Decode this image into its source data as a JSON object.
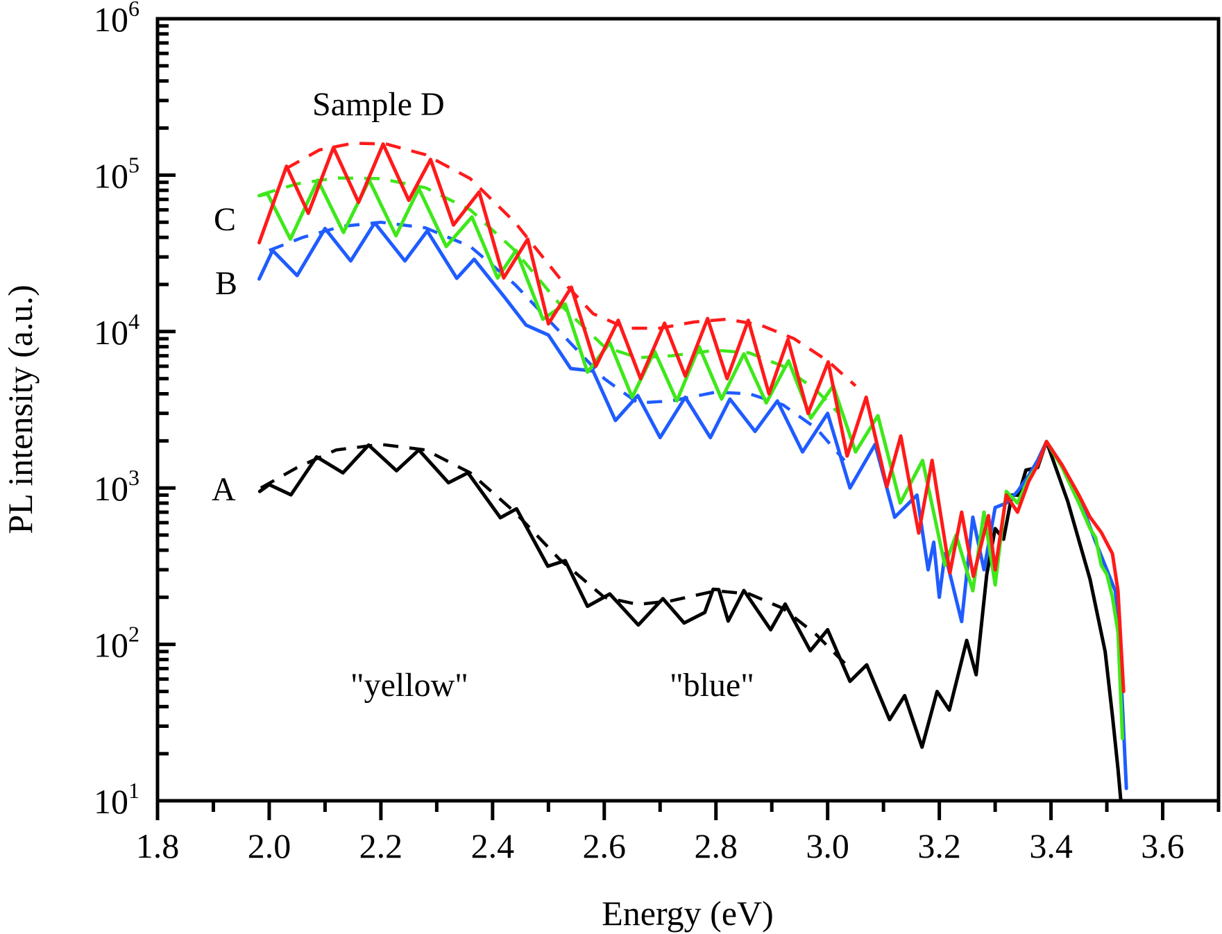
{
  "chart_data": {
    "type": "line",
    "title": "",
    "xlabel": "Energy (eV)",
    "ylabel": "PL intensity (a.u.)",
    "xscale": "linear",
    "yscale": "log",
    "xlim": [
      1.8,
      3.7
    ],
    "ylim": [
      10,
      1000000
    ],
    "xticks": [
      1.8,
      2.0,
      2.2,
      2.4,
      2.6,
      2.8,
      3.0,
      3.2,
      3.4,
      3.6
    ],
    "xtick_labels": [
      "1.8",
      "2.0",
      "2.2",
      "2.4",
      "2.6",
      "2.8",
      "3.0",
      "3.2",
      "3.4",
      "3.6"
    ],
    "yticks": [
      10,
      100,
      1000,
      10000,
      100000,
      1000000
    ],
    "ytick_labels": [
      {
        "base": "10",
        "exp": "1"
      },
      {
        "base": "10",
        "exp": "2"
      },
      {
        "base": "10",
        "exp": "3"
      },
      {
        "base": "10",
        "exp": "4"
      },
      {
        "base": "10",
        "exp": "5"
      },
      {
        "base": "10",
        "exp": "6"
      }
    ],
    "grid": false,
    "legend": "none",
    "annotations": [
      {
        "name": "sample-title",
        "text": "Sample D",
        "x": 2.05,
        "y": 200000
      },
      {
        "name": "label-c",
        "text": "C",
        "x": 1.89,
        "y": 60000
      },
      {
        "name": "label-b",
        "text": "B",
        "x": 1.89,
        "y": 25000
      },
      {
        "name": "label-a",
        "text": "A",
        "x": 1.89,
        "y": 1000
      },
      {
        "name": "label-yellow",
        "text": "\"yellow\"",
        "x": 2.1,
        "y": 50
      },
      {
        "name": "label-blue",
        "text": "\"blue\"",
        "x": 2.67,
        "y": 50
      }
    ],
    "series": [
      {
        "name": "A",
        "style": "solid",
        "color": "#000000",
        "x": [
          1.983,
          2.0,
          2.039,
          2.085,
          2.132,
          2.178,
          2.228,
          2.268,
          2.321,
          2.356,
          2.414,
          2.443,
          2.499,
          2.53,
          2.57,
          2.61,
          2.661,
          2.705,
          2.743,
          2.78,
          2.795,
          2.805,
          2.822,
          2.85,
          2.898,
          2.924,
          2.969,
          3.0,
          3.04,
          3.07,
          3.111,
          3.138,
          3.169,
          3.196,
          3.218,
          3.249,
          3.266,
          3.285,
          3.3,
          3.315,
          3.33,
          3.342,
          3.355,
          3.376,
          3.392,
          3.43,
          3.47,
          3.497,
          3.51,
          3.52,
          3.525
        ],
        "y": [
          950,
          1050,
          904,
          1580,
          1250,
          1880,
          1290,
          1750,
          1080,
          1250,
          645,
          736,
          316,
          343,
          175,
          210,
          133,
          196,
          137,
          160,
          225,
          224,
          141,
          221,
          124,
          181,
          91,
          124,
          58,
          74,
          33,
          47,
          22,
          50,
          38,
          106,
          64,
          280,
          550,
          470,
          900,
          900,
          1300,
          1350,
          1980,
          820,
          260,
          90,
          35,
          16,
          10
        ]
      },
      {
        "name": "B",
        "style": "solid",
        "color": "#1f5cff",
        "x": [
          1.982,
          2.006,
          2.05,
          2.1,
          2.146,
          2.189,
          2.243,
          2.283,
          2.336,
          2.367,
          2.422,
          2.46,
          2.5,
          2.54,
          2.58,
          2.62,
          2.66,
          2.7,
          2.745,
          2.79,
          2.825,
          2.87,
          2.91,
          2.955,
          3.0,
          3.04,
          3.085,
          3.12,
          3.16,
          3.18,
          3.19,
          3.2,
          3.21,
          3.24,
          3.26,
          3.28,
          3.3,
          3.32,
          3.34,
          3.36,
          3.376,
          3.392,
          3.43,
          3.46,
          3.48,
          3.5,
          3.515,
          3.52,
          3.528,
          3.535
        ],
        "y": [
          21700,
          33000,
          22800,
          45600,
          28300,
          49500,
          28300,
          44000,
          21900,
          29000,
          16500,
          11000,
          9500,
          5800,
          5600,
          2700,
          3900,
          2100,
          3800,
          2100,
          3700,
          2300,
          3600,
          1700,
          3000,
          1000,
          1900,
          650,
          900,
          300,
          450,
          200,
          380,
          140,
          650,
          300,
          750,
          800,
          950,
          1200,
          1500,
          1980,
          1200,
          700,
          450,
          300,
          220,
          160,
          40,
          12
        ]
      },
      {
        "name": "C-green",
        "style": "solid",
        "color": "#3ee81a",
        "x": [
          1.982,
          1.997,
          2.038,
          2.087,
          2.133,
          2.179,
          2.227,
          2.268,
          2.317,
          2.363,
          2.409,
          2.442,
          2.49,
          2.53,
          2.57,
          2.61,
          2.65,
          2.69,
          2.73,
          2.77,
          2.81,
          2.85,
          2.89,
          2.93,
          2.97,
          3.01,
          3.05,
          3.09,
          3.13,
          3.17,
          3.21,
          3.23,
          3.26,
          3.28,
          3.3,
          3.32,
          3.34,
          3.36,
          3.376,
          3.392,
          3.42,
          3.45,
          3.47,
          3.48,
          3.49,
          3.5,
          3.51,
          3.52,
          3.528
        ],
        "y": [
          74000,
          76000,
          39000,
          93000,
          43000,
          93000,
          41000,
          82000,
          35000,
          54000,
          22000,
          33000,
          12000,
          15000,
          5500,
          8500,
          3800,
          7500,
          3600,
          8000,
          3700,
          7200,
          3500,
          6500,
          2800,
          4500,
          1700,
          2900,
          800,
          1500,
          320,
          500,
          220,
          700,
          240,
          950,
          800,
          1150,
          1400,
          1980,
          1350,
          800,
          550,
          480,
          320,
          280,
          200,
          120,
          25
        ]
      },
      {
        "name": "C-red",
        "style": "solid",
        "color": "#ff1a1a",
        "x": [
          1.982,
          2.031,
          2.07,
          2.115,
          2.16,
          2.204,
          2.25,
          2.289,
          2.33,
          2.376,
          2.42,
          2.463,
          2.5,
          2.541,
          2.585,
          2.625,
          2.665,
          2.708,
          2.745,
          2.785,
          2.82,
          2.858,
          2.895,
          2.929,
          2.965,
          3.001,
          3.035,
          3.069,
          3.106,
          3.131,
          3.163,
          3.187,
          3.219,
          3.24,
          3.261,
          3.288,
          3.3,
          3.32,
          3.34,
          3.36,
          3.376,
          3.392,
          3.42,
          3.45,
          3.47,
          3.49,
          3.51,
          3.52,
          3.53
        ],
        "y": [
          37000,
          114000,
          57000,
          150000,
          67000,
          158000,
          69000,
          126000,
          48000,
          78000,
          22000,
          39000,
          11200,
          19200,
          6000,
          11800,
          5000,
          11300,
          5200,
          12100,
          5000,
          11800,
          4000,
          8900,
          3000,
          6400,
          1600,
          3800,
          1020,
          2150,
          515,
          1500,
          286,
          700,
          272,
          665,
          300,
          900,
          700,
          1100,
          1400,
          1980,
          1400,
          900,
          650,
          520,
          380,
          220,
          50
        ]
      }
    ],
    "fits": [
      {
        "name": "A-fit",
        "style": "dashed",
        "color": "#000000",
        "x": [
          1.985,
          2.05,
          2.12,
          2.2,
          2.28,
          2.36,
          2.44,
          2.52,
          2.6,
          2.66,
          2.72,
          2.8,
          2.86,
          2.92,
          2.98,
          3.04
        ],
        "y": [
          1000,
          1350,
          1750,
          1900,
          1750,
          1250,
          700,
          350,
          200,
          180,
          190,
          220,
          210,
          170,
          115,
          70
        ]
      },
      {
        "name": "B-fit",
        "style": "dashed",
        "color": "#1f5cff",
        "x": [
          2.0,
          2.06,
          2.13,
          2.2,
          2.28,
          2.36,
          2.44,
          2.52,
          2.6,
          2.66,
          2.72,
          2.8,
          2.86,
          2.92,
          2.98,
          3.03
        ],
        "y": [
          33000,
          40000,
          47000,
          50000,
          46000,
          35000,
          20000,
          10000,
          5000,
          3500,
          3600,
          4100,
          4000,
          3400,
          2400,
          1500
        ]
      },
      {
        "name": "C-green-fit",
        "style": "dashed",
        "color": "#3ee81a",
        "x": [
          1.985,
          2.05,
          2.12,
          2.2,
          2.28,
          2.36,
          2.44,
          2.52,
          2.6,
          2.66,
          2.72,
          2.8,
          2.86,
          2.92,
          2.98,
          3.02
        ],
        "y": [
          75000,
          88000,
          96000,
          95000,
          83000,
          60000,
          33000,
          15000,
          8000,
          6800,
          7000,
          7600,
          7300,
          6000,
          4200,
          3000
        ]
      },
      {
        "name": "C-red-fit",
        "style": "dashed",
        "color": "#ff1a1a",
        "x": [
          2.03,
          2.09,
          2.15,
          2.21,
          2.28,
          2.36,
          2.44,
          2.52,
          2.58,
          2.64,
          2.7,
          2.76,
          2.82,
          2.88,
          2.94,
          3.0,
          3.05
        ],
        "y": [
          110000,
          145000,
          160000,
          158000,
          135000,
          95000,
          50000,
          22000,
          13000,
          10500,
          10500,
          11500,
          12000,
          11000,
          9000,
          6500,
          4500
        ]
      }
    ]
  }
}
